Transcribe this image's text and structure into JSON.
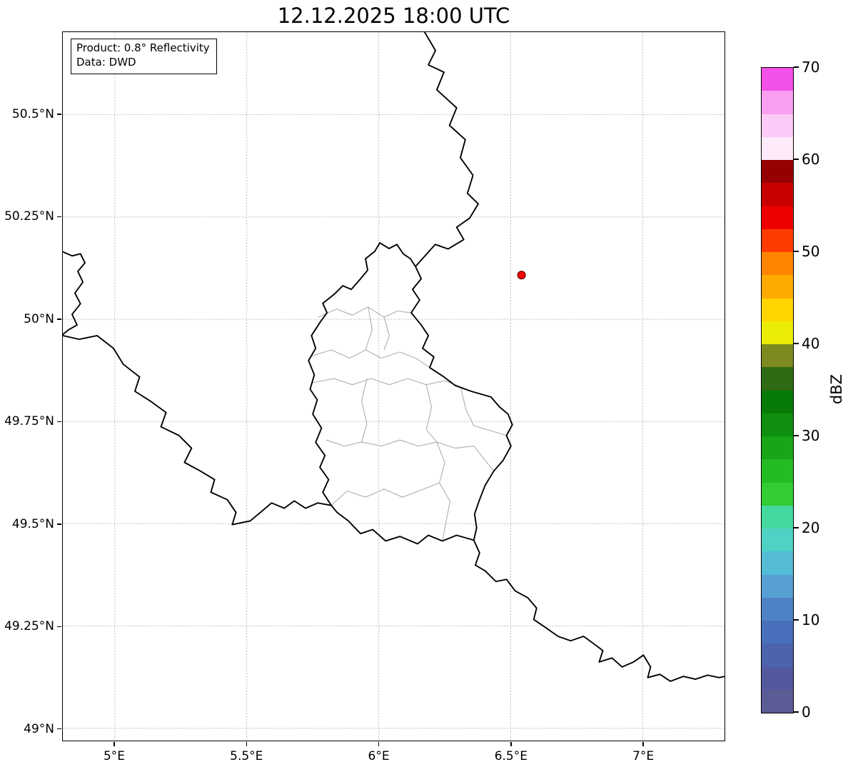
{
  "title": "12.12.2025 18:00 UTC",
  "info_box": {
    "line1": "Product: 0.8° Reflectivity",
    "line2": "Data: DWD"
  },
  "axes": {
    "lon_range": [
      4.803,
      7.31
    ],
    "lat_range": [
      48.97,
      50.702
    ],
    "x_ticks": [
      {
        "value": 5.0,
        "label": "5°E"
      },
      {
        "value": 5.5,
        "label": "5.5°E"
      },
      {
        "value": 6.0,
        "label": "6°E"
      },
      {
        "value": 6.5,
        "label": "6.5°E"
      },
      {
        "value": 7.0,
        "label": "7°E"
      }
    ],
    "y_ticks": [
      {
        "value": 50.5,
        "label": "50.5°N"
      },
      {
        "value": 50.25,
        "label": "50.25°N"
      },
      {
        "value": 50.0,
        "label": "50°N"
      },
      {
        "value": 49.75,
        "label": "49.75°N"
      },
      {
        "value": 49.5,
        "label": "49.5°N"
      },
      {
        "value": 49.25,
        "label": "49.25°N"
      },
      {
        "value": 49.0,
        "label": "49°N"
      }
    ],
    "grid_color": "#bbbbbb"
  },
  "colorbar": {
    "label": "dBZ",
    "min": 0,
    "max": 70,
    "ticks": [
      0,
      10,
      20,
      30,
      40,
      50,
      60,
      70
    ],
    "segment_dbz": 2.5,
    "colors_bottom_to_top": [
      "#5b5b96",
      "#53589f",
      "#4c63ae",
      "#4870bb",
      "#4f83c6",
      "#57a0d4",
      "#54bcd4",
      "#4fd2c4",
      "#44d99e",
      "#33cc33",
      "#25bb25",
      "#17a617",
      "#0e8f0e",
      "#087a08",
      "#2f6b14",
      "#7d8a1f",
      "#ecec09",
      "#ffd500",
      "#ffaa00",
      "#ff8400",
      "#ff3c00",
      "#ee0000",
      "#c80000",
      "#970000",
      "#fdeafb",
      "#fccaf6",
      "#f99ef0",
      "#f250e6"
    ]
  },
  "radar_site": {
    "lon": 6.541,
    "lat": 50.108,
    "color": "#f40000",
    "edge_color": "#6e0000"
  },
  "map": {
    "national_border_color": "#000000",
    "canton_border_color": "#aeaeae",
    "national_borders": [
      [
        [
          6.174,
          50.702
        ],
        [
          6.215,
          50.657
        ],
        [
          6.188,
          50.622
        ],
        [
          6.247,
          50.604
        ],
        [
          6.22,
          50.561
        ],
        [
          6.295,
          50.517
        ],
        [
          6.268,
          50.474
        ],
        [
          6.328,
          50.439
        ],
        [
          6.309,
          50.395
        ],
        [
          6.357,
          50.352
        ],
        [
          6.336,
          50.308
        ],
        [
          6.377,
          50.282
        ],
        [
          6.344,
          50.247
        ],
        [
          6.295,
          50.225
        ],
        [
          6.322,
          50.195
        ],
        [
          6.263,
          50.172
        ],
        [
          6.214,
          50.183
        ],
        [
          6.182,
          50.16
        ],
        [
          6.139,
          50.129
        ]
      ],
      [
        [
          6.139,
          50.129
        ],
        [
          6.161,
          50.099
        ],
        [
          6.128,
          50.073
        ],
        [
          6.155,
          50.047
        ],
        [
          6.123,
          50.016
        ],
        [
          6.161,
          49.986
        ],
        [
          6.188,
          49.96
        ],
        [
          6.166,
          49.929
        ],
        [
          6.209,
          49.908
        ],
        [
          6.193,
          49.882
        ],
        [
          6.247,
          49.859
        ],
        [
          6.29,
          49.838
        ],
        [
          6.35,
          49.824
        ],
        [
          6.425,
          49.81
        ],
        [
          6.457,
          49.786
        ],
        [
          6.49,
          49.768
        ],
        [
          6.506,
          49.742
        ],
        [
          6.484,
          49.716
        ],
        [
          6.501,
          49.69
        ],
        [
          6.471,
          49.655
        ],
        [
          6.436,
          49.629
        ],
        [
          6.403,
          49.594
        ],
        [
          6.382,
          49.559
        ],
        [
          6.363,
          49.524
        ],
        [
          6.371,
          49.49
        ],
        [
          6.36,
          49.46
        ],
        [
          6.295,
          49.472
        ],
        [
          6.241,
          49.458
        ],
        [
          6.188,
          49.472
        ],
        [
          6.147,
          49.451
        ],
        [
          6.08,
          49.469
        ],
        [
          6.026,
          49.458
        ],
        [
          5.977,
          49.486
        ],
        [
          5.931,
          49.476
        ],
        [
          5.885,
          49.507
        ],
        [
          5.842,
          49.528
        ],
        [
          5.82,
          49.545
        ],
        [
          5.788,
          49.577
        ],
        [
          5.81,
          49.608
        ],
        [
          5.777,
          49.638
        ],
        [
          5.796,
          49.667
        ],
        [
          5.761,
          49.699
        ],
        [
          5.783,
          49.734
        ],
        [
          5.75,
          49.768
        ],
        [
          5.767,
          49.803
        ],
        [
          5.74,
          49.829
        ],
        [
          5.756,
          49.864
        ],
        [
          5.734,
          49.899
        ],
        [
          5.761,
          49.929
        ],
        [
          5.745,
          49.96
        ],
        [
          5.777,
          49.992
        ],
        [
          5.804,
          50.016
        ],
        [
          5.788,
          50.039
        ],
        [
          5.831,
          50.061
        ],
        [
          5.864,
          50.082
        ],
        [
          5.896,
          50.073
        ],
        [
          5.931,
          50.099
        ],
        [
          5.958,
          50.12
        ],
        [
          5.95,
          50.148
        ],
        [
          5.985,
          50.166
        ],
        [
          6.004,
          50.187
        ],
        [
          6.039,
          50.173
        ],
        [
          6.069,
          50.183
        ],
        [
          6.093,
          50.16
        ],
        [
          6.12,
          50.148
        ],
        [
          6.139,
          50.129
        ]
      ],
      [
        [
          4.803,
          50.165
        ],
        [
          4.838,
          50.155
        ],
        [
          4.87,
          50.16
        ],
        [
          4.887,
          50.138
        ],
        [
          4.86,
          50.117
        ],
        [
          4.879,
          50.091
        ],
        [
          4.849,
          50.064
        ],
        [
          4.87,
          50.038
        ],
        [
          4.838,
          50.012
        ],
        [
          4.857,
          49.986
        ],
        [
          4.824,
          49.974
        ],
        [
          4.803,
          49.963
        ]
      ],
      [
        [
          4.803,
          49.96
        ],
        [
          4.865,
          49.951
        ],
        [
          4.933,
          49.96
        ],
        [
          4.995,
          49.929
        ],
        [
          5.032,
          49.89
        ],
        [
          5.094,
          49.859
        ],
        [
          5.076,
          49.824
        ],
        [
          5.135,
          49.8
        ],
        [
          5.194,
          49.772
        ],
        [
          5.175,
          49.737
        ],
        [
          5.243,
          49.716
        ],
        [
          5.291,
          49.685
        ],
        [
          5.264,
          49.65
        ],
        [
          5.324,
          49.629
        ],
        [
          5.378,
          49.608
        ],
        [
          5.364,
          49.577
        ],
        [
          5.426,
          49.559
        ],
        [
          5.459,
          49.528
        ],
        [
          5.445,
          49.498
        ],
        [
          5.513,
          49.507
        ],
        [
          5.561,
          49.533
        ],
        [
          5.594,
          49.551
        ],
        [
          5.642,
          49.538
        ],
        [
          5.68,
          49.556
        ],
        [
          5.723,
          49.538
        ],
        [
          5.769,
          49.551
        ],
        [
          5.82,
          49.545
        ]
      ],
      [
        [
          6.36,
          49.46
        ],
        [
          6.382,
          49.429
        ],
        [
          6.366,
          49.399
        ],
        [
          6.403,
          49.385
        ],
        [
          6.444,
          49.359
        ],
        [
          6.484,
          49.364
        ],
        [
          6.517,
          49.336
        ],
        [
          6.565,
          49.319
        ],
        [
          6.598,
          49.294
        ],
        [
          6.587,
          49.266
        ],
        [
          6.633,
          49.246
        ],
        [
          6.679,
          49.225
        ],
        [
          6.727,
          49.214
        ],
        [
          6.776,
          49.225
        ],
        [
          6.814,
          49.207
        ],
        [
          6.849,
          49.19
        ],
        [
          6.835,
          49.162
        ],
        [
          6.884,
          49.172
        ],
        [
          6.922,
          49.15
        ],
        [
          6.965,
          49.162
        ],
        [
          7.003,
          49.179
        ],
        [
          7.03,
          49.15
        ],
        [
          7.019,
          49.124
        ],
        [
          7.065,
          49.132
        ],
        [
          7.105,
          49.115
        ],
        [
          7.154,
          49.127
        ],
        [
          7.2,
          49.12
        ],
        [
          7.246,
          49.13
        ],
        [
          7.289,
          49.124
        ],
        [
          7.311,
          49.127
        ]
      ]
    ],
    "canton_borders": [
      [
        [
          5.77,
          50.005
        ],
        [
          5.84,
          50.025
        ],
        [
          5.9,
          50.01
        ],
        [
          5.96,
          50.03
        ],
        [
          6.02,
          50.005
        ],
        [
          6.07,
          50.02
        ],
        [
          6.123,
          50.016
        ]
      ],
      [
        [
          5.96,
          50.03
        ],
        [
          5.975,
          49.975
        ],
        [
          5.95,
          49.925
        ]
      ],
      [
        [
          6.02,
          50.005
        ],
        [
          6.04,
          49.96
        ],
        [
          6.02,
          49.925
        ]
      ],
      [
        [
          5.745,
          49.91
        ],
        [
          5.82,
          49.925
        ],
        [
          5.89,
          49.905
        ],
        [
          5.95,
          49.925
        ],
        [
          6.01,
          49.905
        ],
        [
          6.08,
          49.92
        ],
        [
          6.14,
          49.905
        ],
        [
          6.193,
          49.882
        ]
      ],
      [
        [
          5.75,
          49.845
        ],
        [
          5.83,
          49.855
        ],
        [
          5.9,
          49.84
        ],
        [
          5.97,
          49.855
        ],
        [
          6.04,
          49.84
        ],
        [
          6.11,
          49.855
        ],
        [
          6.18,
          49.84
        ],
        [
          6.25,
          49.85
        ],
        [
          6.31,
          49.835
        ],
        [
          6.35,
          49.824
        ]
      ],
      [
        [
          5.955,
          49.855
        ],
        [
          5.935,
          49.8
        ],
        [
          5.955,
          49.745
        ],
        [
          5.935,
          49.7
        ]
      ],
      [
        [
          5.8,
          49.705
        ],
        [
          5.87,
          49.69
        ],
        [
          5.935,
          49.7
        ],
        [
          6.01,
          49.69
        ],
        [
          6.08,
          49.705
        ],
        [
          6.15,
          49.69
        ],
        [
          6.22,
          49.7
        ],
        [
          6.29,
          49.685
        ],
        [
          6.36,
          49.69
        ],
        [
          6.436,
          49.629
        ]
      ],
      [
        [
          6.18,
          49.84
        ],
        [
          6.2,
          49.785
        ],
        [
          6.18,
          49.73
        ],
        [
          6.22,
          49.7
        ]
      ],
      [
        [
          6.22,
          49.7
        ],
        [
          6.25,
          49.65
        ],
        [
          6.23,
          49.6
        ],
        [
          6.27,
          49.555
        ],
        [
          6.241,
          49.458
        ]
      ],
      [
        [
          5.82,
          49.545
        ],
        [
          5.88,
          49.58
        ],
        [
          5.95,
          49.565
        ],
        [
          6.02,
          49.585
        ],
        [
          6.09,
          49.565
        ],
        [
          6.15,
          49.58
        ],
        [
          6.23,
          49.6
        ]
      ],
      [
        [
          6.31,
          49.835
        ],
        [
          6.33,
          49.78
        ],
        [
          6.36,
          49.74
        ],
        [
          6.484,
          49.716
        ]
      ]
    ]
  },
  "chart_data": {
    "type": "heatmap",
    "title": "12.12.2025 18:00 UTC",
    "product": "0.8° Reflectivity",
    "data_source": "DWD",
    "xlabel": "",
    "ylabel": "",
    "x_tick_labels": [
      "5°E",
      "5.5°E",
      "6°E",
      "6.5°E",
      "7°E"
    ],
    "y_tick_labels": [
      "49°N",
      "49.25°N",
      "49.5°N",
      "49.75°N",
      "50°N",
      "50.25°N",
      "50.5°N"
    ],
    "xlim_deg_east": [
      4.803,
      7.31
    ],
    "ylim_deg_north": [
      48.97,
      50.702
    ],
    "grid": true,
    "colorbar": {
      "label": "dBZ",
      "range": [
        0,
        70
      ],
      "ticks": [
        0,
        10,
        20,
        30,
        40,
        50,
        60,
        70
      ],
      "position": "right"
    },
    "reflectivity_echoes": [],
    "notes": "No reflectivity echoes visible on the map; only base map borders (Luxembourg with cantons, surrounding national borders) are shown.",
    "series": [
      {
        "name": "radar-site-marker",
        "type": "scatter",
        "x": [
          6.541
        ],
        "y": [
          50.108
        ],
        "color": "#f40000"
      }
    ]
  }
}
